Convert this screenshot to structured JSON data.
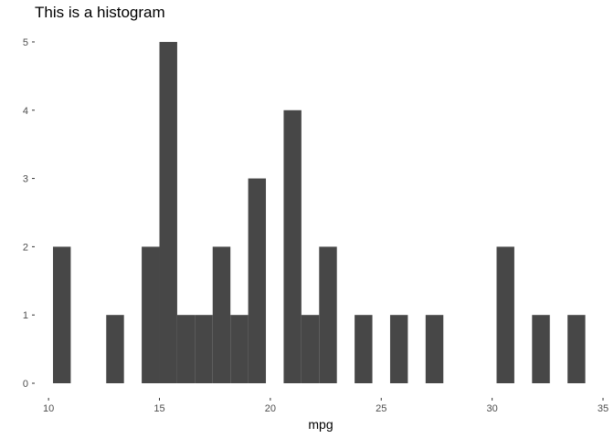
{
  "chart_data": {
    "type": "bar",
    "title": "This is a histogram",
    "xlabel": "mpg",
    "ylabel": "",
    "xlim": [
      9.5,
      35
    ],
    "ylim": [
      0,
      5.2
    ],
    "xticks": [
      10,
      15,
      20,
      25,
      30,
      35
    ],
    "yticks": [
      0,
      1,
      2,
      3,
      4,
      5
    ],
    "bar_color": "#474747",
    "grid": false,
    "bins": [
      {
        "x0": 10.2,
        "x1": 11.0,
        "count": 2
      },
      {
        "x0": 12.6,
        "x1": 13.4,
        "count": 1
      },
      {
        "x0": 14.2,
        "x1": 15.0,
        "count": 2
      },
      {
        "x0": 15.0,
        "x1": 15.8,
        "count": 5
      },
      {
        "x0": 15.8,
        "x1": 16.6,
        "count": 1
      },
      {
        "x0": 16.6,
        "x1": 17.4,
        "count": 1
      },
      {
        "x0": 17.4,
        "x1": 18.2,
        "count": 2
      },
      {
        "x0": 18.2,
        "x1": 19.0,
        "count": 1
      },
      {
        "x0": 19.0,
        "x1": 19.8,
        "count": 3
      },
      {
        "x0": 20.6,
        "x1": 21.4,
        "count": 4
      },
      {
        "x0": 21.4,
        "x1": 22.2,
        "count": 1
      },
      {
        "x0": 22.2,
        "x1": 23.0,
        "count": 2
      },
      {
        "x0": 23.8,
        "x1": 24.6,
        "count": 1
      },
      {
        "x0": 25.4,
        "x1": 26.2,
        "count": 1
      },
      {
        "x0": 27.0,
        "x1": 27.8,
        "count": 1
      },
      {
        "x0": 30.2,
        "x1": 31.0,
        "count": 2
      },
      {
        "x0": 31.8,
        "x1": 32.6,
        "count": 1
      },
      {
        "x0": 33.4,
        "x1": 34.2,
        "count": 1
      }
    ]
  }
}
